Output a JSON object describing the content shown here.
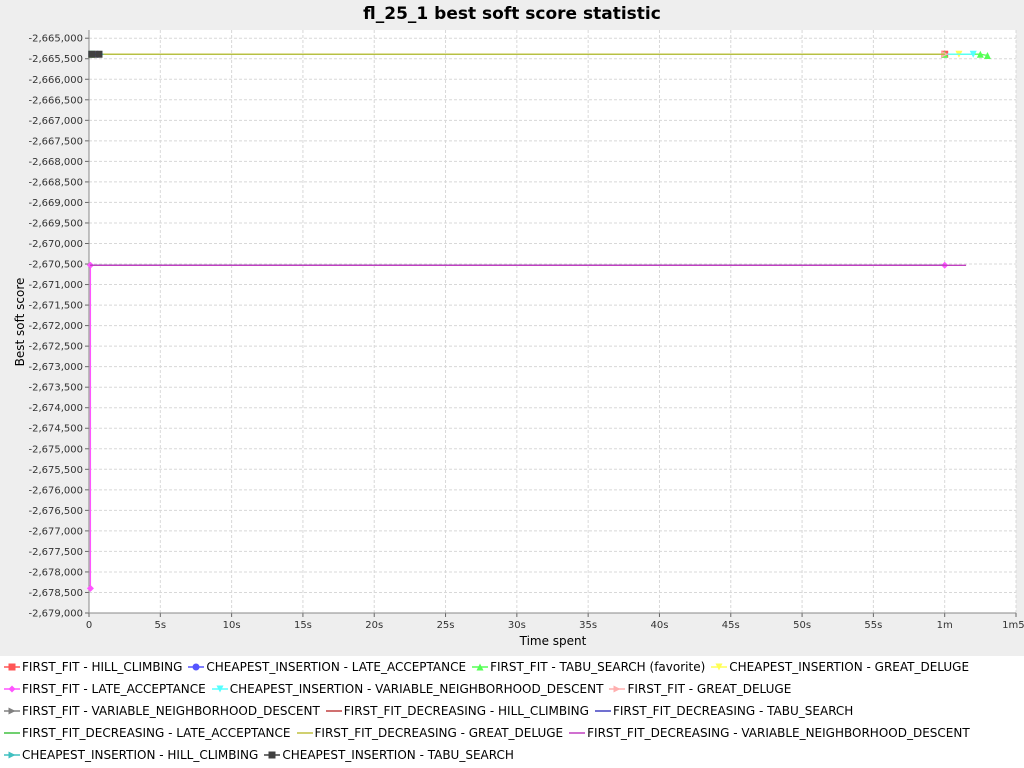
{
  "chart_data": {
    "type": "line",
    "title": "fl_25_1 best soft score statistic",
    "xlabel": "Time spent",
    "ylabel": "Best soft score",
    "xlim": [
      0,
      65
    ],
    "ylim": [
      -2679000,
      -2664800
    ],
    "x_ticks": [
      {
        "value": 0,
        "label": "0"
      },
      {
        "value": 5,
        "label": "5s"
      },
      {
        "value": 10,
        "label": "10s"
      },
      {
        "value": 15,
        "label": "15s"
      },
      {
        "value": 20,
        "label": "20s"
      },
      {
        "value": 25,
        "label": "25s"
      },
      {
        "value": 30,
        "label": "30s"
      },
      {
        "value": 35,
        "label": "35s"
      },
      {
        "value": 40,
        "label": "40s"
      },
      {
        "value": 45,
        "label": "45s"
      },
      {
        "value": 50,
        "label": "50s"
      },
      {
        "value": 55,
        "label": "55s"
      },
      {
        "value": 60,
        "label": "1m"
      },
      {
        "value": 65,
        "label": "1m5s"
      }
    ],
    "y_ticks": [
      {
        "value": -2665000,
        "label": "-2,665,000"
      },
      {
        "value": -2665500,
        "label": "-2,665,500"
      },
      {
        "value": -2666000,
        "label": "-2,666,000"
      },
      {
        "value": -2666500,
        "label": "-2,666,500"
      },
      {
        "value": -2667000,
        "label": "-2,667,000"
      },
      {
        "value": -2667500,
        "label": "-2,667,500"
      },
      {
        "value": -2668000,
        "label": "-2,668,000"
      },
      {
        "value": -2668500,
        "label": "-2,668,500"
      },
      {
        "value": -2669000,
        "label": "-2,669,000"
      },
      {
        "value": -2669500,
        "label": "-2,669,500"
      },
      {
        "value": -2670000,
        "label": "-2,670,000"
      },
      {
        "value": -2670500,
        "label": "-2,670,500"
      },
      {
        "value": -2671000,
        "label": "-2,671,000"
      },
      {
        "value": -2671500,
        "label": "-2,671,500"
      },
      {
        "value": -2672000,
        "label": "-2,672,000"
      },
      {
        "value": -2672500,
        "label": "-2,672,500"
      },
      {
        "value": -2673000,
        "label": "-2,673,000"
      },
      {
        "value": -2673500,
        "label": "-2,673,500"
      },
      {
        "value": -2674000,
        "label": "-2,674,000"
      },
      {
        "value": -2674500,
        "label": "-2,674,500"
      },
      {
        "value": -2675000,
        "label": "-2,675,000"
      },
      {
        "value": -2675500,
        "label": "-2,675,500"
      },
      {
        "value": -2676000,
        "label": "-2,676,000"
      },
      {
        "value": -2676500,
        "label": "-2,676,500"
      },
      {
        "value": -2677000,
        "label": "-2,677,000"
      },
      {
        "value": -2677500,
        "label": "-2,677,500"
      },
      {
        "value": -2678000,
        "label": "-2,678,000"
      },
      {
        "value": -2678500,
        "label": "-2,678,500"
      },
      {
        "value": -2679000,
        "label": "-2,679,000"
      }
    ],
    "grid": true,
    "legend_position": "bottom",
    "series": [
      {
        "name": "FIRST_FIT - HILL_CLIMBING",
        "color": "#ff5555",
        "marker": "square",
        "points": [
          [
            0.2,
            -2665390
          ],
          [
            60,
            -2665390
          ]
        ]
      },
      {
        "name": "CHEAPEST_INSERTION - LATE_ACCEPTANCE",
        "color": "#5555ff",
        "marker": "circle",
        "points": [
          [
            0.2,
            -2665390
          ],
          [
            0.6,
            -2665390
          ]
        ]
      },
      {
        "name": "FIRST_FIT - TABU_SEARCH (favorite)",
        "color": "#55ff55",
        "marker": "triangle-up",
        "points": [
          [
            0.2,
            -2665390
          ],
          [
            60,
            -2665390
          ],
          [
            62.5,
            -2665390
          ],
          [
            63,
            -2665420
          ]
        ]
      },
      {
        "name": "CHEAPEST_INSERTION - GREAT_DELUGE",
        "color": "#ffff55",
        "marker": "triangle-down",
        "points": [
          [
            0.2,
            -2665390
          ],
          [
            61,
            -2665390
          ]
        ]
      },
      {
        "name": "FIRST_FIT - LATE_ACCEPTANCE",
        "color": "#ff55ff",
        "marker": "diamond",
        "points": [
          [
            0.1,
            -2678400
          ],
          [
            0.1,
            -2670530
          ],
          [
            60,
            -2670530
          ]
        ]
      },
      {
        "name": "CHEAPEST_INSERTION - VARIABLE_NEIGHBORHOOD_DESCENT",
        "color": "#55ffff",
        "marker": "triangle-down",
        "points": [
          [
            0.2,
            -2665390
          ],
          [
            62,
            -2665390
          ]
        ]
      },
      {
        "name": "FIRST_FIT - GREAT_DELUGE",
        "color": "#ffafaf",
        "marker": "triangle-right",
        "points": [
          [
            0.2,
            -2665390
          ],
          [
            60,
            -2665390
          ]
        ]
      },
      {
        "name": "FIRST_FIT - VARIABLE_NEIGHBORHOOD_DESCENT",
        "color": "#808080",
        "marker": "triangle-right",
        "points": [
          [
            0.2,
            -2665390
          ],
          [
            0.7,
            -2665390
          ]
        ]
      },
      {
        "name": "FIRST_FIT_DECREASING - HILL_CLIMBING",
        "color": "#c04040",
        "marker": "none",
        "points": [
          [
            0.1,
            -2670530
          ],
          [
            60,
            -2670530
          ]
        ]
      },
      {
        "name": "FIRST_FIT_DECREASING - TABU_SEARCH",
        "color": "#4040c0",
        "marker": "none",
        "points": [
          [
            0.1,
            -2670530
          ],
          [
            60,
            -2670530
          ]
        ]
      },
      {
        "name": "FIRST_FIT_DECREASING - LATE_ACCEPTANCE",
        "color": "#40c040",
        "marker": "none",
        "points": [
          [
            0.2,
            -2665390
          ],
          [
            60,
            -2665390
          ]
        ]
      },
      {
        "name": "FIRST_FIT_DECREASING - GREAT_DELUGE",
        "color": "#c0c040",
        "marker": "none",
        "points": [
          [
            0.2,
            -2665390
          ],
          [
            60,
            -2665390
          ]
        ]
      },
      {
        "name": "FIRST_FIT_DECREASING - VARIABLE_NEIGHBORHOOD_DESCENT",
        "color": "#c040c0",
        "marker": "none",
        "points": [
          [
            0.1,
            -2670530
          ],
          [
            61.5,
            -2670530
          ]
        ]
      },
      {
        "name": "CHEAPEST_INSERTION - HILL_CLIMBING",
        "color": "#40c0c0",
        "marker": "triangle-right",
        "points": [
          [
            0.2,
            -2665390
          ],
          [
            0.8,
            -2665390
          ]
        ]
      },
      {
        "name": "CHEAPEST_INSERTION - TABU_SEARCH",
        "color": "#404040",
        "marker": "square",
        "points": [
          [
            0.2,
            -2665390
          ],
          [
            0.7,
            -2665390
          ]
        ]
      }
    ]
  },
  "legend_rows": [
    [
      0,
      1,
      2,
      3
    ],
    [
      4,
      5,
      6
    ],
    [
      7,
      8,
      9
    ],
    [
      10,
      11,
      12
    ],
    [
      13,
      14
    ]
  ]
}
